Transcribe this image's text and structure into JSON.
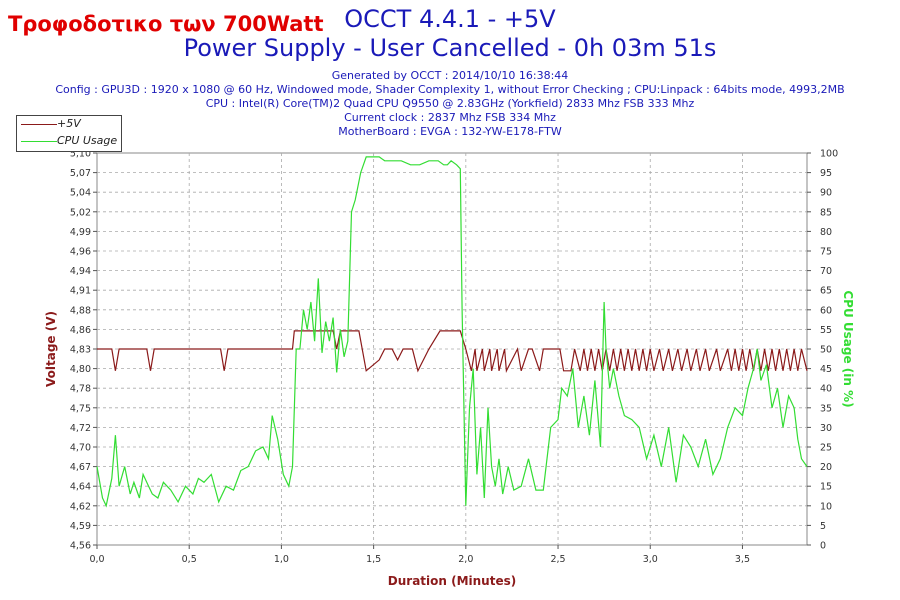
{
  "title_line1": "OCCT 4.4.1 - +5V",
  "title_line2": "Power Supply - User Cancelled - 0h 03m 51s",
  "overlay_text": "Τροφοδοτικο των 700Watt",
  "info_lines": [
    "Generated by OCCT : 2014/10/10 16:38:44",
    "Config : GPU3D : 1920 x 1080 @ 60 Hz, Windowed mode, Shader Complexity 1, without Error Checking ; CPU:Linpack : 64bits mode, 4993,2MB",
    "CPU : Intel(R) Core(TM)2 Quad CPU Q9550 @ 2.83GHz (Yorkfield) 2833 Mhz FSB 333 Mhz",
    "Current clock : 2837 Mhz FSB 334 Mhz",
    "MotherBoard : EVGA : 132-YW-E178-FTW"
  ],
  "chart_data": {
    "type": "line",
    "xlabel": "Duration (Minutes)",
    "ylabel_left": "Voltage (V)",
    "ylabel_right": "CPU Usage (in %)",
    "xlim": [
      0,
      3.85
    ],
    "ylim_left": [
      4.56,
      5.1
    ],
    "ylim_right": [
      0,
      100
    ],
    "x_ticks": [
      "0,0",
      "0,5",
      "1,0",
      "1,5",
      "2,0",
      "2,5",
      "3,0",
      "3,5"
    ],
    "y_left_ticks": [
      "4,56",
      "4,59",
      "4,62",
      "4,64",
      "4,67",
      "4,70",
      "4,72",
      "4,75",
      "4,78",
      "4,80",
      "4,83",
      "4,86",
      "4,88",
      "4,91",
      "4,94",
      "4,96",
      "4,99",
      "5,02",
      "5,04",
      "5,07",
      "5,10"
    ],
    "y_right_ticks": [
      "0",
      "5",
      "10",
      "15",
      "20",
      "25",
      "30",
      "35",
      "40",
      "45",
      "50",
      "55",
      "60",
      "65",
      "70",
      "75",
      "80",
      "85",
      "90",
      "95",
      "100"
    ],
    "grid": true,
    "legend_position": "top-left",
    "colors": {
      "voltage": "#8b1a1a",
      "cpu": "#33dd33",
      "left_axis": "#8b1a1a",
      "right_axis": "#33dd33",
      "x_axis_label": "#8b1a1a"
    },
    "series": [
      {
        "name": "+5V",
        "axis": "left",
        "x": [
          0.0,
          0.08,
          0.1,
          0.12,
          0.27,
          0.29,
          0.31,
          0.67,
          0.69,
          0.71,
          1.06,
          1.07,
          1.28,
          1.3,
          1.32,
          1.42,
          1.46,
          1.53,
          1.56,
          1.6,
          1.63,
          1.66,
          1.71,
          1.74,
          1.8,
          1.86,
          1.92,
          1.97,
          2.0,
          2.03,
          2.05,
          2.06,
          2.09,
          2.1,
          2.13,
          2.14,
          2.17,
          2.18,
          2.21,
          2.22,
          2.28,
          2.3,
          2.34,
          2.36,
          2.4,
          2.42,
          2.51,
          2.53,
          2.57,
          2.59,
          2.62,
          2.64,
          2.66,
          2.68,
          2.7,
          2.72,
          2.74,
          2.76,
          2.78,
          2.8,
          2.82,
          2.84,
          2.86,
          2.88,
          2.9,
          2.92,
          2.94,
          2.96,
          2.98,
          3.0,
          3.02,
          3.05,
          3.07,
          3.1,
          3.12,
          3.15,
          3.17,
          3.2,
          3.22,
          3.25,
          3.27,
          3.3,
          3.32,
          3.36,
          3.38,
          3.42,
          3.44,
          3.46,
          3.48,
          3.5,
          3.52,
          3.54,
          3.56,
          3.58,
          3.6,
          3.62,
          3.64,
          3.66,
          3.68,
          3.7,
          3.72,
          3.74,
          3.76,
          3.78,
          3.8,
          3.82,
          3.85
        ],
        "values": [
          4.83,
          4.83,
          4.8,
          4.83,
          4.83,
          4.8,
          4.83,
          4.83,
          4.8,
          4.83,
          4.83,
          4.855,
          4.855,
          4.83,
          4.855,
          4.855,
          4.8,
          4.815,
          4.83,
          4.83,
          4.815,
          4.83,
          4.83,
          4.8,
          4.83,
          4.855,
          4.855,
          4.855,
          4.83,
          4.8,
          4.83,
          4.8,
          4.83,
          4.8,
          4.83,
          4.8,
          4.83,
          4.8,
          4.83,
          4.8,
          4.83,
          4.8,
          4.83,
          4.83,
          4.8,
          4.83,
          4.83,
          4.8,
          4.8,
          4.83,
          4.8,
          4.83,
          4.8,
          4.83,
          4.8,
          4.83,
          4.8,
          4.83,
          4.8,
          4.83,
          4.8,
          4.83,
          4.8,
          4.83,
          4.8,
          4.83,
          4.8,
          4.83,
          4.8,
          4.83,
          4.8,
          4.83,
          4.8,
          4.83,
          4.8,
          4.83,
          4.8,
          4.83,
          4.8,
          4.83,
          4.8,
          4.83,
          4.8,
          4.83,
          4.8,
          4.83,
          4.8,
          4.83,
          4.8,
          4.83,
          4.8,
          4.83,
          4.8,
          4.83,
          4.8,
          4.83,
          4.8,
          4.83,
          4.8,
          4.83,
          4.8,
          4.83,
          4.8,
          4.83,
          4.8,
          4.83,
          4.8
        ]
      },
      {
        "name": "CPU Usage",
        "axis": "right",
        "x": [
          0.0,
          0.03,
          0.05,
          0.08,
          0.1,
          0.12,
          0.15,
          0.18,
          0.2,
          0.23,
          0.25,
          0.28,
          0.3,
          0.33,
          0.36,
          0.4,
          0.44,
          0.48,
          0.52,
          0.55,
          0.58,
          0.62,
          0.66,
          0.7,
          0.74,
          0.78,
          0.82,
          0.86,
          0.9,
          0.93,
          0.95,
          0.98,
          1.01,
          1.04,
          1.06,
          1.08,
          1.1,
          1.12,
          1.14,
          1.16,
          1.18,
          1.2,
          1.22,
          1.24,
          1.26,
          1.28,
          1.3,
          1.32,
          1.34,
          1.36,
          1.38,
          1.4,
          1.43,
          1.46,
          1.5,
          1.53,
          1.56,
          1.6,
          1.65,
          1.7,
          1.75,
          1.8,
          1.85,
          1.88,
          1.9,
          1.92,
          1.95,
          1.97,
          1.98,
          2.0,
          2.02,
          2.04,
          2.06,
          2.08,
          2.1,
          2.12,
          2.14,
          2.16,
          2.18,
          2.2,
          2.23,
          2.26,
          2.3,
          2.34,
          2.38,
          2.42,
          2.46,
          2.5,
          2.52,
          2.55,
          2.58,
          2.61,
          2.64,
          2.67,
          2.7,
          2.73,
          2.75,
          2.76,
          2.78,
          2.8,
          2.83,
          2.86,
          2.9,
          2.94,
          2.98,
          3.02,
          3.06,
          3.1,
          3.14,
          3.18,
          3.22,
          3.26,
          3.3,
          3.34,
          3.38,
          3.42,
          3.46,
          3.5,
          3.53,
          3.56,
          3.58,
          3.6,
          3.63,
          3.66,
          3.69,
          3.72,
          3.75,
          3.78,
          3.8,
          3.82,
          3.85
        ],
        "values": [
          20,
          12,
          10,
          17,
          28,
          15,
          20,
          13,
          16,
          12,
          18,
          15,
          13,
          12,
          16,
          14,
          11,
          15,
          13,
          17,
          16,
          18,
          11,
          15,
          14,
          19,
          20,
          24,
          25,
          22,
          33,
          27,
          18,
          15,
          20,
          50,
          50,
          60,
          55,
          62,
          52,
          68,
          49,
          57,
          52,
          58,
          44,
          55,
          48,
          52,
          85,
          88,
          95,
          99,
          99,
          99,
          98,
          98,
          98,
          97,
          97,
          98,
          98,
          97,
          97,
          98,
          97,
          96,
          60,
          10,
          35,
          45,
          18,
          30,
          12,
          35,
          20,
          15,
          22,
          13,
          20,
          14,
          15,
          22,
          14,
          14,
          30,
          32,
          40,
          38,
          45,
          30,
          38,
          28,
          42,
          25,
          62,
          50,
          40,
          45,
          38,
          33,
          32,
          30,
          22,
          28,
          20,
          30,
          16,
          28,
          25,
          20,
          27,
          18,
          22,
          30,
          35,
          33,
          40,
          45,
          50,
          42,
          46,
          35,
          40,
          30,
          38,
          35,
          27,
          22,
          20
        ]
      }
    ]
  }
}
